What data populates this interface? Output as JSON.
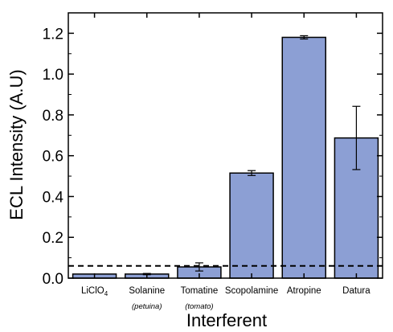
{
  "chart_data": {
    "type": "bar",
    "title": "",
    "xlabel": "Interferent",
    "ylabel": "ECL Intensity (A.U)",
    "ylim": [
      0,
      1.3
    ],
    "yticks": [
      "0.0",
      "0.2",
      "0.4",
      "0.6",
      "0.8",
      "1.0",
      "1.2"
    ],
    "ytick_values": [
      0,
      0.2,
      0.4,
      0.6,
      0.8,
      1.0,
      1.2
    ],
    "categories": [
      {
        "label": "LiClO",
        "sub": "4",
        "note": ""
      },
      {
        "label": "Solanine",
        "sub": "",
        "note": "(petuina)"
      },
      {
        "label": "Tomatine",
        "sub": "",
        "note": "(tomato)"
      },
      {
        "label": "Scopolamine",
        "sub": "",
        "note": ""
      },
      {
        "label": "Atropine",
        "sub": "",
        "note": ""
      },
      {
        "label": "Datura",
        "sub": "",
        "note": ""
      }
    ],
    "values": [
      0.02,
      0.02,
      0.055,
      0.515,
      1.18,
      0.687
    ],
    "errors": [
      0,
      0.003,
      0.02,
      0.012,
      0.008,
      0.155
    ],
    "threshold": 0.06,
    "grid": false,
    "bar_color": "#8c9fd4"
  }
}
